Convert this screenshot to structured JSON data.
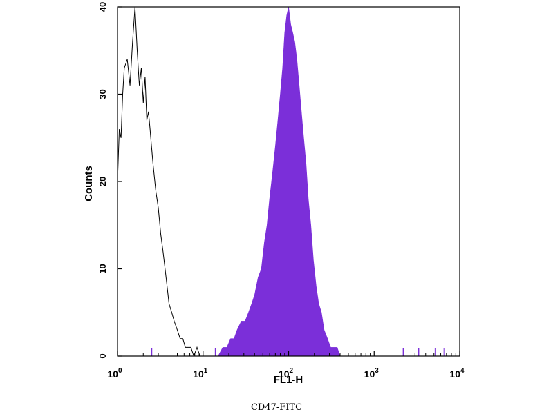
{
  "chart_data": {
    "type": "area",
    "xlabel": "FL1-H",
    "ylabel": "Counts",
    "xscale": "log",
    "xlim": [
      1,
      10000
    ],
    "ylim": [
      0,
      40
    ],
    "x_ticks": [
      {
        "value": 1,
        "base": "10",
        "exp": "0"
      },
      {
        "value": 10,
        "base": "10",
        "exp": "1"
      },
      {
        "value": 100,
        "base": "10",
        "exp": "2"
      },
      {
        "value": 1000,
        "base": "10",
        "exp": "3"
      },
      {
        "value": 10000,
        "base": "10",
        "exp": "4"
      }
    ],
    "y_ticks": [
      "0",
      "10",
      "20",
      "30",
      "40"
    ],
    "series": [
      {
        "style": "outline",
        "color": "#000000",
        "x": [
          1.0,
          1.05,
          1.1,
          1.15,
          1.2,
          1.3,
          1.4,
          1.5,
          1.6,
          1.7,
          1.8,
          1.9,
          2.0,
          2.1,
          2.2,
          2.3,
          2.4,
          2.5,
          2.6,
          2.8,
          3.0,
          3.2,
          3.4,
          3.6,
          3.8,
          4.0,
          4.3,
          4.6,
          5.0,
          5.4,
          5.8,
          6.2,
          6.7,
          7.2,
          7.8,
          8.5,
          9.2,
          10.0
        ],
        "values": [
          20,
          26,
          25,
          30,
          33,
          34,
          31,
          36,
          40,
          35,
          31,
          33,
          29,
          32,
          27,
          28,
          26,
          24,
          22,
          19,
          17,
          14,
          12,
          10,
          8,
          6,
          5,
          4,
          3,
          2,
          2,
          1,
          1,
          1,
          0,
          1,
          0,
          0
        ]
      },
      {
        "style": "filled",
        "color": "#7b2fd9",
        "x": [
          15,
          17,
          19,
          21,
          23,
          25,
          28,
          31,
          34,
          37,
          40,
          44,
          48,
          52,
          56,
          60,
          65,
          70,
          75,
          80,
          85,
          90,
          95,
          100,
          106,
          112,
          118,
          125,
          133,
          141,
          150,
          160,
          170,
          182,
          195,
          210,
          225,
          242,
          260,
          285,
          310,
          340,
          370,
          400
        ],
        "values": [
          0,
          1,
          1,
          2,
          2,
          3,
          4,
          4,
          5,
          6,
          7,
          9,
          10,
          13,
          15,
          18,
          21,
          24,
          27,
          30,
          33,
          37,
          39,
          40,
          38,
          37,
          36,
          34,
          31,
          28,
          25,
          22,
          18,
          15,
          11,
          8,
          6,
          5,
          3,
          2,
          1,
          1,
          1,
          0
        ]
      }
    ],
    "sparse_events": [
      2.5,
      14,
      2200,
      3300,
      5200,
      6600
    ]
  },
  "caption": "CD47-FITC"
}
